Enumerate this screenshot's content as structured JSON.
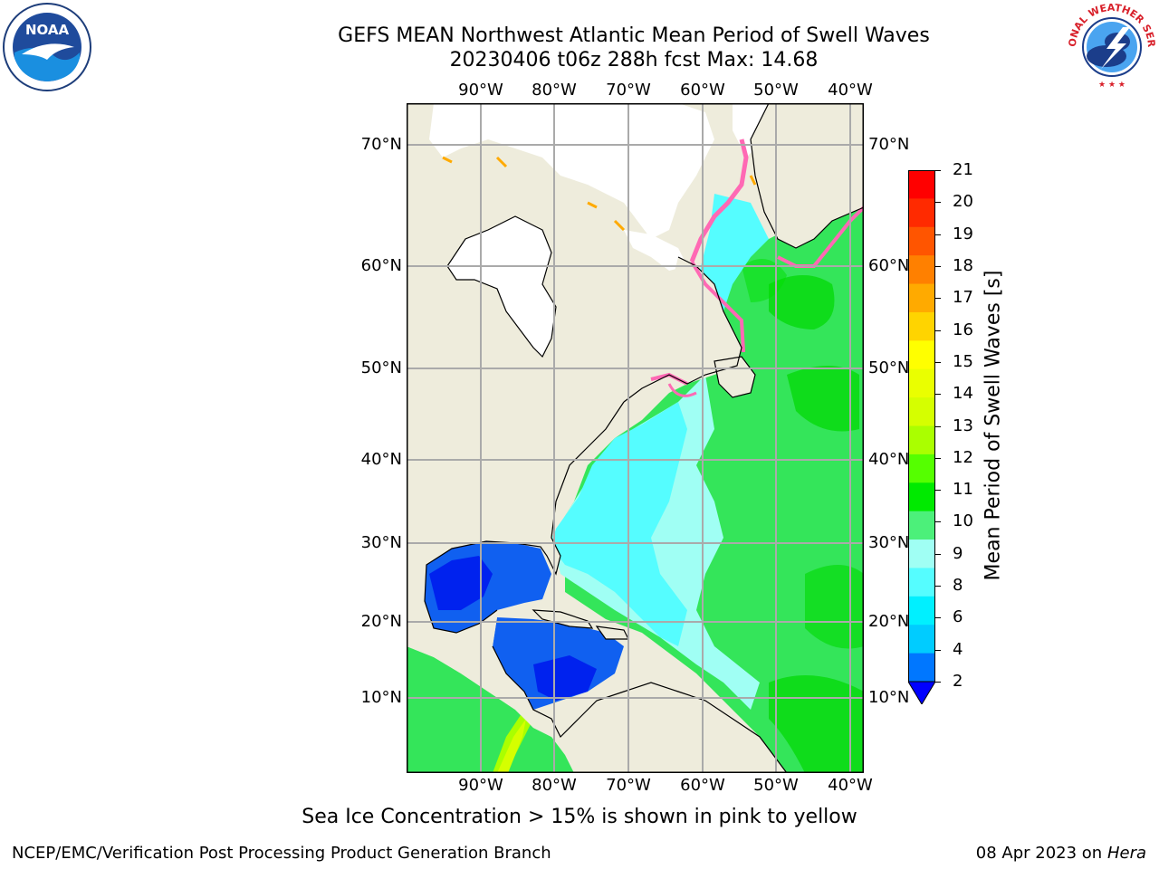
{
  "title": {
    "line1": "GEFS MEAN Northwest Atlantic Mean Period of Swell Waves",
    "line2": "20230406 t06z 288h fcst   Max: 14.68"
  },
  "map": {
    "lon_labels": [
      "90°W",
      "80°W",
      "70°W",
      "60°W",
      "50°W",
      "40°W"
    ],
    "lat_labels": [
      "70°N",
      "60°N",
      "50°N",
      "40°N",
      "30°N",
      "20°N",
      "10°N"
    ],
    "land_color": "#eeecdc",
    "ice_note_color": "#ff69b4"
  },
  "colorbar": {
    "label": "Mean Period of Swell Waves [s]",
    "ticks": [
      "21",
      "20",
      "19",
      "18",
      "17",
      "16",
      "15",
      "14",
      "13",
      "12",
      "11",
      "10",
      "9",
      "8",
      "6",
      "4",
      "2"
    ],
    "colors": [
      "#ff0000",
      "#ff2a00",
      "#ff5500",
      "#ff8000",
      "#ffaa00",
      "#ffd400",
      "#ffff00",
      "#eaff00",
      "#d5ff00",
      "#aaff00",
      "#55ff00",
      "#00ea00",
      "#4cf07a",
      "#a0fff4",
      "#55fdff",
      "#00f0ff",
      "#00ccff",
      "#0077ff"
    ],
    "under_color": "#0000ff"
  },
  "note": "Sea Ice Concentration > 15% is shown in pink to yellow",
  "footer": {
    "left": "NCEP/EMC/Verification Post Processing Product Generation Branch",
    "date": "08 Apr 2023 on ",
    "host": "Hera"
  },
  "logos": {
    "noaa": "NOAA",
    "nws": "NATIONAL WEATHER SERVICE"
  }
}
